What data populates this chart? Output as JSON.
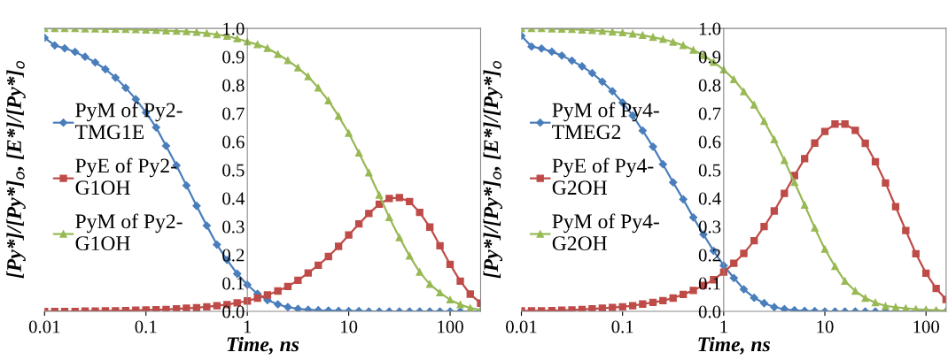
{
  "chart_data": [
    {
      "type": "line",
      "xlabel": "Time, ns",
      "ylabel": "[Py*]/[Py*]$_{o}$, [E*]/[Py*]$_{o}$",
      "log": "x",
      "grid": false,
      "legend": "left",
      "x": [
        0.01,
        0.0126,
        0.0158,
        0.02,
        0.0251,
        0.0316,
        0.0398,
        0.0501,
        0.0631,
        0.0794,
        0.1,
        0.126,
        0.158,
        0.2,
        0.251,
        0.316,
        0.398,
        0.501,
        0.631,
        0.794,
        1,
        1.26,
        1.58,
        2,
        2.51,
        3.16,
        3.98,
        5.01,
        6.31,
        7.94,
        10,
        12.6,
        15.8,
        20,
        25.1,
        31.6,
        39.8,
        50.1,
        63.1,
        79.4,
        100,
        126,
        158,
        200
      ],
      "xlim": [
        0.01,
        200
      ],
      "xticks": [
        0.01,
        0.1,
        1,
        10,
        100
      ],
      "ylim": [
        0,
        1
      ],
      "yticks": [
        {
          "value": 0,
          "label": "0.0"
        },
        {
          "value": 0.1,
          "label": "0.1"
        },
        {
          "value": 0.2,
          "label": "0.2"
        },
        {
          "value": 0.3,
          "label": "0.3"
        },
        {
          "value": 0.4,
          "label": "0.4"
        },
        {
          "value": 0.5,
          "label": "0.5"
        },
        {
          "value": 0.6,
          "label": "0.6"
        },
        {
          "value": 0.7,
          "label": "0.7"
        },
        {
          "value": 0.8,
          "label": "0.8"
        },
        {
          "value": 0.9,
          "label": "0.9"
        },
        {
          "value": 1,
          "label": "1.0"
        }
      ],
      "series": [
        {
          "name": "PyM of Py2-TMG1E",
          "color": "#4a7ebb",
          "marker": "diamond",
          "values": [
            0.967,
            0.94,
            0.93,
            0.917,
            0.9,
            0.88,
            0.856,
            0.826,
            0.79,
            0.75,
            0.703,
            0.65,
            0.585,
            0.516,
            0.445,
            0.373,
            0.303,
            0.236,
            0.182,
            0.133,
            0.094,
            0.062,
            0.04,
            0.025,
            0.015,
            0.009,
            0.006,
            0.004,
            0.003,
            0.002,
            0.001,
            0.001,
            0,
            0,
            0,
            0,
            0,
            0,
            0,
            0,
            0,
            0,
            0,
            0
          ]
        },
        {
          "name": "PyE of Py2-G1OH",
          "color": "#be4b48",
          "marker": "square",
          "values": [
            0,
            0,
            0,
            0,
            0.001,
            0.001,
            0.002,
            0.002,
            0.003,
            0.004,
            0.005,
            0.006,
            0.007,
            0.009,
            0.011,
            0.013,
            0.016,
            0.02,
            0.024,
            0.03,
            0.037,
            0.047,
            0.058,
            0.072,
            0.088,
            0.11,
            0.136,
            0.163,
            0.194,
            0.23,
            0.27,
            0.309,
            0.346,
            0.379,
            0.399,
            0.402,
            0.388,
            0.35,
            0.298,
            0.232,
            0.166,
            0.107,
            0.061,
            0.029
          ]
        },
        {
          "name": "PyM of Py2-G1OH",
          "color": "#98b954",
          "marker": "triangle",
          "values": [
            1,
            1,
            1,
            1,
            0.999,
            0.999,
            0.998,
            0.998,
            0.997,
            0.996,
            0.995,
            0.994,
            0.992,
            0.991,
            0.989,
            0.987,
            0.983,
            0.978,
            0.973,
            0.964,
            0.953,
            0.943,
            0.93,
            0.909,
            0.887,
            0.861,
            0.83,
            0.79,
            0.745,
            0.69,
            0.63,
            0.56,
            0.49,
            0.411,
            0.332,
            0.261,
            0.196,
            0.139,
            0.096,
            0.066,
            0.041,
            0.024,
            0.012,
            0.005
          ]
        }
      ]
    },
    {
      "type": "line",
      "xlabel": "Time, ns",
      "ylabel": "[Py*]/[Py*]$_{o}$, [E*]/[Py*]$_{o}$",
      "log": "x",
      "grid": false,
      "legend": "left",
      "x": [
        0.01,
        0.0126,
        0.0158,
        0.02,
        0.0251,
        0.0316,
        0.0398,
        0.0501,
        0.0631,
        0.0794,
        0.1,
        0.126,
        0.158,
        0.2,
        0.251,
        0.316,
        0.398,
        0.501,
        0.631,
        0.794,
        1,
        1.26,
        1.58,
        2,
        2.51,
        3.16,
        3.98,
        5.01,
        6.31,
        7.94,
        10,
        12.6,
        15.8,
        20,
        25.1,
        31.6,
        39.8,
        50.1,
        63.1,
        79.4,
        100,
        126,
        158
      ],
      "xlim": [
        0.01,
        158
      ],
      "xticks": [
        0.01,
        0.1,
        1,
        10,
        100
      ],
      "ylim": [
        0,
        1
      ],
      "yticks": [
        {
          "value": 0,
          "label": "0.0"
        },
        {
          "value": 0.1,
          "label": "0.1"
        },
        {
          "value": 0.2,
          "label": "0.2"
        },
        {
          "value": 0.3,
          "label": "0.3"
        },
        {
          "value": 0.4,
          "label": "0.4"
        },
        {
          "value": 0.5,
          "label": "0.5"
        },
        {
          "value": 0.6,
          "label": "0.6"
        },
        {
          "value": 0.7,
          "label": "0.7"
        },
        {
          "value": 0.8,
          "label": "0.8"
        },
        {
          "value": 0.9,
          "label": "0.9"
        },
        {
          "value": 1,
          "label": "1.0"
        }
      ],
      "series": [
        {
          "name": "PyM of Py4-TMEG2",
          "color": "#4a7ebb",
          "marker": "diamond",
          "values": [
            0.974,
            0.936,
            0.929,
            0.918,
            0.904,
            0.886,
            0.866,
            0.842,
            0.812,
            0.778,
            0.738,
            0.692,
            0.639,
            0.582,
            0.52,
            0.456,
            0.396,
            0.332,
            0.272,
            0.214,
            0.162,
            0.118,
            0.078,
            0.048,
            0.029,
            0.015,
            0.008,
            0.004,
            0.002,
            0.001,
            0,
            0,
            0,
            0,
            0,
            0,
            0,
            0,
            0,
            0,
            0,
            0,
            0
          ]
        },
        {
          "name": "PyE of Py4-G2OH",
          "color": "#be4b48",
          "marker": "square",
          "values": [
            0.002,
            0.002,
            0.002,
            0.003,
            0.004,
            0.005,
            0.007,
            0.009,
            0.011,
            0.014,
            0.016,
            0.02,
            0.026,
            0.032,
            0.038,
            0.047,
            0.06,
            0.074,
            0.092,
            0.112,
            0.139,
            0.17,
            0.205,
            0.25,
            0.3,
            0.355,
            0.417,
            0.48,
            0.54,
            0.595,
            0.636,
            0.662,
            0.662,
            0.64,
            0.594,
            0.529,
            0.454,
            0.37,
            0.286,
            0.204,
            0.135,
            0.081,
            0.042
          ]
        },
        {
          "name": "PyM of Py4-G2OH",
          "color": "#98b954",
          "marker": "triangle",
          "values": [
            1,
            1,
            1,
            0.999,
            0.998,
            0.997,
            0.995,
            0.993,
            0.991,
            0.988,
            0.985,
            0.981,
            0.976,
            0.969,
            0.962,
            0.952,
            0.94,
            0.924,
            0.905,
            0.881,
            0.854,
            0.82,
            0.777,
            0.73,
            0.672,
            0.607,
            0.534,
            0.456,
            0.376,
            0.295,
            0.22,
            0.159,
            0.107,
            0.072,
            0.047,
            0.031,
            0.019,
            0.015,
            0.011,
            0.008,
            0.006,
            0.004,
            0.002
          ]
        }
      ]
    }
  ]
}
